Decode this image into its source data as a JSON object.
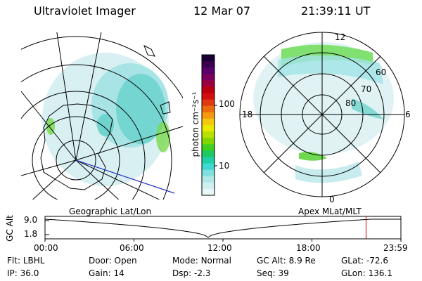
{
  "header": {
    "instrument": "Ultraviolet Imager",
    "date": "12 Mar 07",
    "time": "21:39:11 UT"
  },
  "colorbar": {
    "unit_label": "photon cm⁻²s⁻¹",
    "ticks": [
      "100",
      "10"
    ],
    "colors": [
      "#1a0030",
      "#3a0050",
      "#5a006a",
      "#7a0060",
      "#9a0040",
      "#bb0010",
      "#d21010",
      "#e03a10",
      "#ee6a10",
      "#f59a10",
      "#f5c810",
      "#e8e800",
      "#b8e000",
      "#80d800",
      "#40d020",
      "#20c860",
      "#20d0a8",
      "#40d8d0",
      "#80e0e0",
      "#b0e8e8",
      "#d0f0f0",
      "#e8f8f8"
    ]
  },
  "geo_panel": {
    "label": "Geographic Lat/Lon"
  },
  "apex_panel": {
    "label": "Apex MLat/MLT",
    "mlt_labels": {
      "top": "12",
      "bottom": "0",
      "left": "18",
      "right": "6"
    },
    "lat_labels": [
      "60",
      "70",
      "80"
    ]
  },
  "altitude_plot": {
    "axis_label": "GC Alt",
    "y_ticks": [
      "9.0",
      "1.8"
    ],
    "x_ticks": [
      "00:00",
      "06:00",
      "12:00",
      "18:00",
      "23:59"
    ],
    "marker_hour": 21.65,
    "colors": {
      "marker": "#cc0000",
      "trace": "#000000"
    }
  },
  "status": {
    "row1": [
      {
        "key": "Flt:",
        "value": "LBHL"
      },
      {
        "key": "Door:",
        "value": "Open"
      },
      {
        "key": "Mode:",
        "value": "Normal"
      },
      {
        "key": "GC Alt:",
        "value": "8.9 Re"
      },
      {
        "key": "GLat:",
        "value": "-72.6"
      }
    ],
    "row2": [
      {
        "key": "IP:",
        "value": "36.0"
      },
      {
        "key": "Gain:",
        "value": "14"
      },
      {
        "key": "Dsp:",
        "value": "-2.3"
      },
      {
        "key": "Seq:",
        "value": "39"
      },
      {
        "key": "GLon:",
        "value": "136.1"
      }
    ]
  }
}
